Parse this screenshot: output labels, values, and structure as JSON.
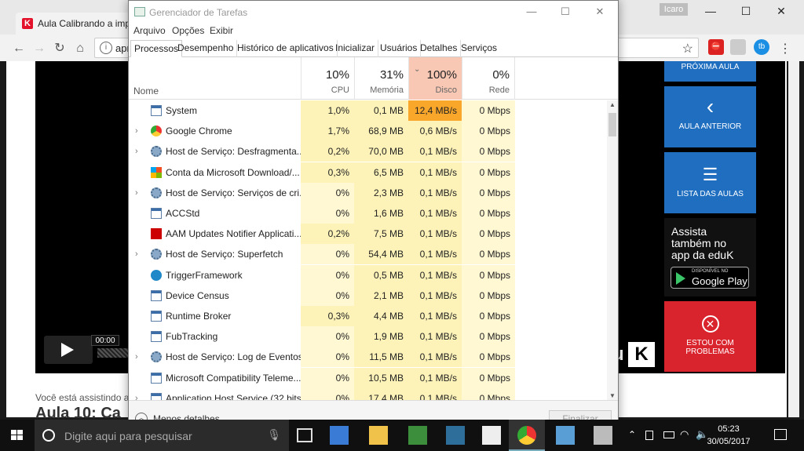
{
  "browser": {
    "tab_title": "Aula Calibrando a impr",
    "tab_favicon": "K",
    "profile": "Icaro",
    "omnibox_text": "apr",
    "extensions": [
      "abp-icon",
      "ext-icon",
      "tb"
    ]
  },
  "page": {
    "time": "00:00",
    "logo_text": "K",
    "logo_u": "u",
    "side_prox": "PRÓXIMA AULA",
    "side_ant": "AULA ANTERIOR",
    "side_lista": "LISTA DAS AULAS",
    "side_app_line1": "Assista",
    "side_app_line2": "também no",
    "side_app_line3": "app da eduK",
    "side_app_badge_top": "DISPONÍVEL NO",
    "side_app_badge": "Google Play",
    "side_prob_line1": "ESTOU COM",
    "side_prob_line2": "PROBLEMAS",
    "assisting": "Você está assistindo ao",
    "aula": "Aula 10: Ca"
  },
  "taskmanager": {
    "title": "Gerenciador de Tarefas",
    "menu": [
      "Arquivo",
      "Opções",
      "Exibir"
    ],
    "tabs": [
      "Processos",
      "Desempenho",
      "Histórico de aplicativos",
      "Inicializar",
      "Usuários",
      "Detalhes",
      "Serviços"
    ],
    "header": {
      "name": "Nome",
      "cpu_pct": "10%",
      "cpu": "CPU",
      "mem_pct": "31%",
      "mem": "Memória",
      "disk_pct": "100%",
      "disk": "Disco",
      "net_pct": "0%",
      "net": "Rede"
    },
    "processes": [
      {
        "name": "System",
        "expand": false,
        "icon": "system-icon",
        "cpu": "1,0%",
        "mem": "0,1 MB",
        "disk": "12,4 MB/s",
        "net": "0 Mbps"
      },
      {
        "name": "Google Chrome",
        "expand": true,
        "icon": "chrome-icon",
        "cpu": "1,7%",
        "mem": "68,9 MB",
        "disk": "0,6 MB/s",
        "net": "0 Mbps"
      },
      {
        "name": "Host de Serviço: Desfragmenta...",
        "expand": true,
        "icon": "gear-icon",
        "cpu": "0,2%",
        "mem": "70,0 MB",
        "disk": "0,1 MB/s",
        "net": "0 Mbps"
      },
      {
        "name": "Conta da Microsoft Download/...",
        "expand": false,
        "icon": "ms-icon",
        "cpu": "0,3%",
        "mem": "6,5 MB",
        "disk": "0,1 MB/s",
        "net": "0 Mbps"
      },
      {
        "name": "Host de Serviço: Serviços de cri...",
        "expand": true,
        "icon": "gear-icon",
        "cpu": "0%",
        "mem": "2,3 MB",
        "disk": "0,1 MB/s",
        "net": "0 Mbps"
      },
      {
        "name": "ACCStd",
        "expand": false,
        "icon": "system-icon",
        "cpu": "0%",
        "mem": "1,6 MB",
        "disk": "0,1 MB/s",
        "net": "0 Mbps"
      },
      {
        "name": "AAM Updates Notifier Applicati...",
        "expand": false,
        "icon": "adobe-icon",
        "cpu": "0,2%",
        "mem": "7,5 MB",
        "disk": "0,1 MB/s",
        "net": "0 Mbps"
      },
      {
        "name": "Host de Serviço: Superfetch",
        "expand": true,
        "icon": "gear-icon",
        "cpu": "0%",
        "mem": "54,4 MB",
        "disk": "0,1 MB/s",
        "net": "0 Mbps"
      },
      {
        "name": "TriggerFramework",
        "expand": false,
        "icon": "trigger-icon",
        "cpu": "0%",
        "mem": "0,5 MB",
        "disk": "0,1 MB/s",
        "net": "0 Mbps"
      },
      {
        "name": "Device Census",
        "expand": false,
        "icon": "system-icon",
        "cpu": "0%",
        "mem": "2,1 MB",
        "disk": "0,1 MB/s",
        "net": "0 Mbps"
      },
      {
        "name": "Runtime Broker",
        "expand": false,
        "icon": "system-icon",
        "cpu": "0,3%",
        "mem": "4,4 MB",
        "disk": "0,1 MB/s",
        "net": "0 Mbps"
      },
      {
        "name": "FubTracking",
        "expand": false,
        "icon": "system-icon",
        "cpu": "0%",
        "mem": "1,9 MB",
        "disk": "0,1 MB/s",
        "net": "0 Mbps"
      },
      {
        "name": "Host de Serviço: Log de Eventos...",
        "expand": true,
        "icon": "gear-icon",
        "cpu": "0%",
        "mem": "11,5 MB",
        "disk": "0,1 MB/s",
        "net": "0 Mbps"
      },
      {
        "name": "Microsoft Compatibility Teleme...",
        "expand": false,
        "icon": "system-icon",
        "cpu": "0%",
        "mem": "10,5 MB",
        "disk": "0,1 MB/s",
        "net": "0 Mbps"
      },
      {
        "name": "Application Host Service (32 bits)",
        "expand": true,
        "icon": "system-icon",
        "cpu": "0%",
        "mem": "17,4 MB",
        "disk": "0,1 MB/s",
        "net": "0 Mbps"
      }
    ],
    "less_details": "Menos detalhes",
    "end_task": "Finalizar tarefa"
  },
  "taskbar": {
    "search_placeholder": "Digite aqui para pesquisar",
    "time": "05:23",
    "date": "30/05/2017"
  },
  "colors": {
    "cpu_high": "#fdf3b8",
    "cpu_low": "#fff8d3",
    "disk_hot": "#f9a72b",
    "disk_header": "#f8c8b4",
    "accent_blue": "#1f6ec0",
    "alert_red": "#d9232d"
  }
}
